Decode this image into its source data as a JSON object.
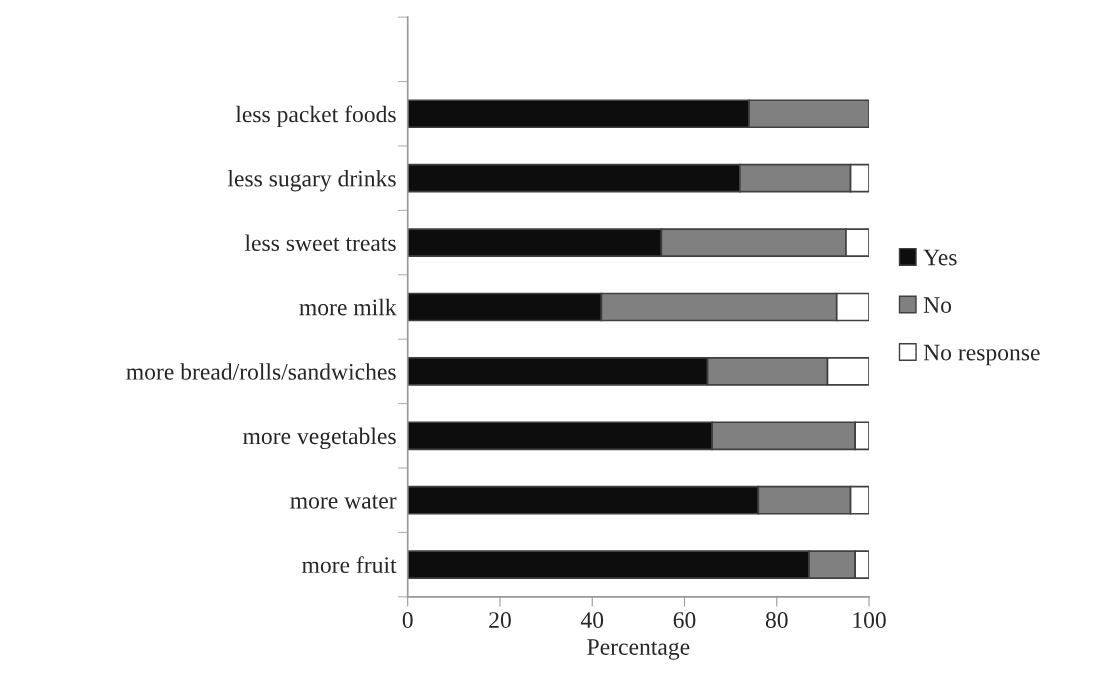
{
  "chart_data": {
    "type": "bar",
    "orientation": "horizontal",
    "stacked": true,
    "xlabel": "Percentage",
    "categories": [
      null,
      "less packet foods",
      "less sugary drinks",
      "less sweet treats",
      "more milk",
      "more bread/rolls/sandwiches",
      "more vegetables",
      "more water",
      "more fruit"
    ],
    "series": [
      {
        "name": "Yes",
        "color": "#0d0d0d",
        "values": [
          null,
          74,
          72,
          55,
          42,
          65,
          66,
          76,
          87
        ]
      },
      {
        "name": "No",
        "color": "#808080",
        "values": [
          null,
          26,
          24,
          40,
          51,
          26,
          31,
          20,
          10
        ]
      },
      {
        "name": "No response",
        "color": "#ffffff",
        "values": [
          null,
          null,
          4,
          5,
          7,
          9,
          3,
          4,
          3
        ]
      }
    ],
    "xlim": [
      0,
      100
    ],
    "xticks": [
      0,
      20,
      40,
      60,
      80,
      100
    ],
    "grid": false,
    "legend": "right"
  }
}
